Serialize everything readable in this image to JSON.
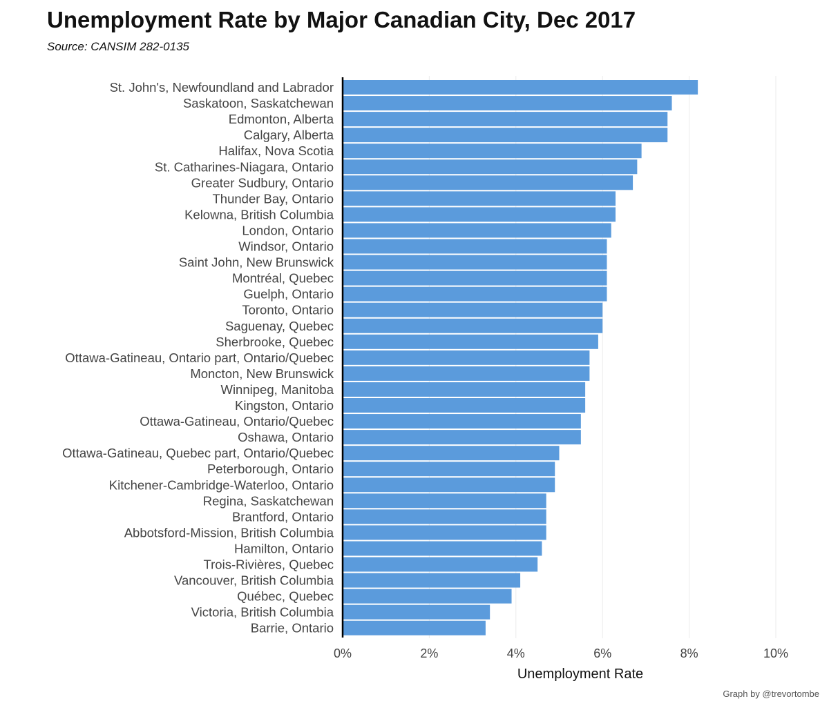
{
  "chart_data": {
    "type": "bar",
    "orientation": "horizontal",
    "title": "Unemployment Rate by Major Canadian City, Dec 2017",
    "subtitle": "Source: CANSIM 282-0135",
    "xlabel": "Unemployment Rate",
    "ylabel": "",
    "xlim": [
      0,
      10
    ],
    "xticks": [
      "0%",
      "2%",
      "4%",
      "6%",
      "8%",
      "10%"
    ],
    "xtick_values": [
      0,
      2,
      4,
      6,
      8,
      10
    ],
    "grid": true,
    "bar_color": "#5b9bdc",
    "categories": [
      "St. John's, Newfoundland and Labrador",
      "Saskatoon, Saskatchewan",
      "Edmonton, Alberta",
      "Calgary, Alberta",
      "Halifax, Nova Scotia",
      "St. Catharines-Niagara, Ontario",
      "Greater Sudbury, Ontario",
      "Thunder Bay, Ontario",
      "Kelowna, British Columbia",
      "London, Ontario",
      "Windsor, Ontario",
      "Saint John, New Brunswick",
      "Montréal, Quebec",
      "Guelph, Ontario",
      "Toronto, Ontario",
      "Saguenay, Quebec",
      "Sherbrooke, Quebec",
      "Ottawa-Gatineau, Ontario part, Ontario/Quebec",
      "Moncton, New Brunswick",
      "Winnipeg, Manitoba",
      "Kingston, Ontario",
      "Ottawa-Gatineau, Ontario/Quebec",
      "Oshawa, Ontario",
      "Ottawa-Gatineau, Quebec part, Ontario/Quebec",
      "Peterborough, Ontario",
      "Kitchener-Cambridge-Waterloo, Ontario",
      "Regina, Saskatchewan",
      "Brantford, Ontario",
      "Abbotsford-Mission, British Columbia",
      "Hamilton, Ontario",
      "Trois-Rivières, Quebec",
      "Vancouver, British Columbia",
      "Québec, Quebec",
      "Victoria, British Columbia",
      "Barrie, Ontario"
    ],
    "values": [
      8.2,
      7.6,
      7.5,
      7.5,
      6.9,
      6.8,
      6.7,
      6.3,
      6.3,
      6.2,
      6.1,
      6.1,
      6.1,
      6.1,
      6.0,
      6.0,
      5.9,
      5.7,
      5.7,
      5.6,
      5.6,
      5.5,
      5.5,
      5.0,
      4.9,
      4.9,
      4.7,
      4.7,
      4.7,
      4.6,
      4.5,
      4.1,
      3.9,
      3.4,
      3.3
    ]
  },
  "credit": "Graph by @trevortombe"
}
